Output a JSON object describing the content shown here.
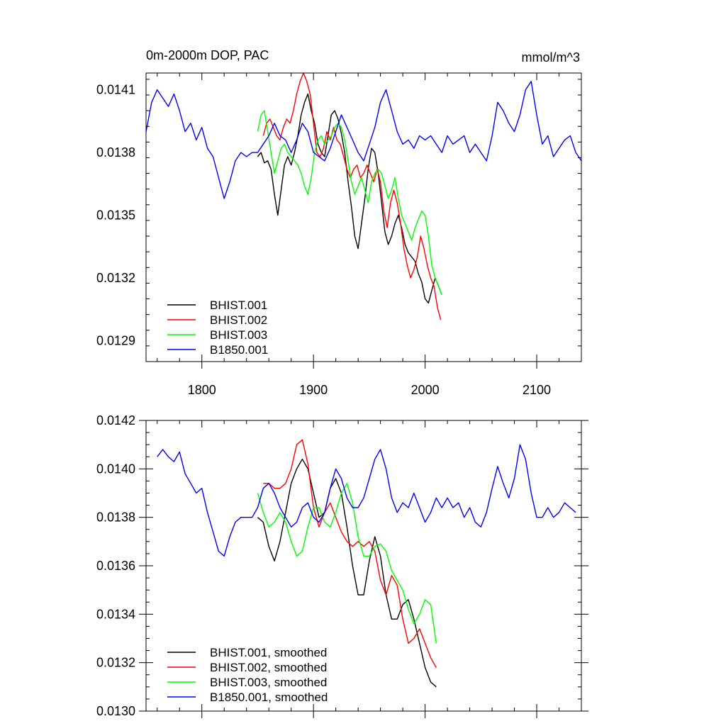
{
  "chart_data": [
    {
      "type": "line",
      "title": "0m-2000m DOP, PAC",
      "units_label": "mmol/m^3",
      "xlim": [
        1750,
        2140
      ],
      "ylim": [
        0.0128,
        0.01418
      ],
      "x_ticks": [
        1800,
        1900,
        2000,
        2100
      ],
      "x_tick_labels": [
        "1800",
        "1900",
        "2000",
        "2100"
      ],
      "y_ticks": [
        0.0129,
        0.0132,
        0.0135,
        0.0138,
        0.0141
      ],
      "y_tick_labels": [
        "0.0129",
        "0.0132",
        "0.0135",
        "0.0138",
        "0.0141"
      ],
      "legend_position": "bottom-left",
      "series": [
        {
          "name": "BHIST.001",
          "color": "#000000",
          "x": [
            1850,
            1853,
            1856,
            1859,
            1862,
            1865,
            1868,
            1871,
            1874,
            1877,
            1880,
            1883,
            1886,
            1889,
            1892,
            1895,
            1898,
            1901,
            1904,
            1907,
            1910,
            1913,
            1916,
            1919,
            1922,
            1925,
            1928,
            1931,
            1934,
            1937,
            1940,
            1943,
            1946,
            1949,
            1952,
            1955,
            1958,
            1961,
            1964,
            1967,
            1970,
            1973,
            1976,
            1979,
            1982,
            1985,
            1988,
            1991,
            1994,
            1997,
            2000,
            2003,
            2006,
            2009,
            2012,
            2015
          ],
          "values": [
            0.01378,
            0.0138,
            0.01375,
            0.01376,
            0.01372,
            0.0136,
            0.0135,
            0.01362,
            0.01374,
            0.01378,
            0.01374,
            0.0138,
            0.01388,
            0.01398,
            0.01404,
            0.01408,
            0.014,
            0.01394,
            0.01384,
            0.0138,
            0.01378,
            0.01388,
            0.01398,
            0.014,
            0.01396,
            0.01389,
            0.0138,
            0.01366,
            0.01354,
            0.0134,
            0.01334,
            0.01346,
            0.01358,
            0.01372,
            0.01382,
            0.0138,
            0.0137,
            0.01356,
            0.01342,
            0.01336,
            0.0134,
            0.01346,
            0.0135,
            0.01344,
            0.01336,
            0.01332,
            0.0133,
            0.01328,
            0.01322,
            0.01318,
            0.0131,
            0.01308,
            0.01314,
            0.0132,
            0.01316,
            0.01312
          ]
        },
        {
          "name": "BHIST.002",
          "color": "#ff0000",
          "x": [
            1855,
            1858,
            1861,
            1864,
            1867,
            1870,
            1873,
            1876,
            1879,
            1882,
            1885,
            1888,
            1891,
            1894,
            1897,
            1900,
            1903,
            1906,
            1909,
            1912,
            1915,
            1918,
            1921,
            1924,
            1927,
            1930,
            1933,
            1936,
            1939,
            1942,
            1945,
            1948,
            1951,
            1954,
            1957,
            1960,
            1963,
            1966,
            1969,
            1972,
            1975,
            1978,
            1981,
            1984,
            1987,
            1990,
            1993,
            1996,
            1999,
            2002,
            2005,
            2008,
            2011,
            2014
          ],
          "values": [
            0.01388,
            0.01394,
            0.01396,
            0.01392,
            0.01388,
            0.01386,
            0.01392,
            0.01396,
            0.01394,
            0.014,
            0.01408,
            0.01414,
            0.01418,
            0.01414,
            0.01408,
            0.01394,
            0.0138,
            0.01378,
            0.01382,
            0.0139,
            0.01386,
            0.01392,
            0.01386,
            0.01384,
            0.01378,
            0.01372,
            0.01368,
            0.01372,
            0.01374,
            0.01368,
            0.0137,
            0.01374,
            0.0137,
            0.01366,
            0.01372,
            0.01366,
            0.01352,
            0.01344,
            0.01356,
            0.01362,
            0.01356,
            0.01346,
            0.01334,
            0.01326,
            0.0132,
            0.01324,
            0.0133,
            0.0134,
            0.01334,
            0.01326,
            0.0132,
            0.01316,
            0.01306,
            0.013
          ]
        },
        {
          "name": "BHIST.003",
          "color": "#00ff00",
          "x": [
            1850,
            1853,
            1856,
            1859,
            1862,
            1865,
            1868,
            1871,
            1874,
            1877,
            1880,
            1883,
            1886,
            1889,
            1892,
            1895,
            1898,
            1901,
            1904,
            1907,
            1910,
            1913,
            1916,
            1919,
            1922,
            1925,
            1928,
            1931,
            1934,
            1937,
            1940,
            1943,
            1946,
            1949,
            1952,
            1955,
            1958,
            1961,
            1964,
            1967,
            1970,
            1973,
            1976,
            1979,
            1982,
            1985,
            1988,
            1991,
            1994,
            1997,
            2000,
            2003,
            2006,
            2009,
            2012,
            2015
          ],
          "values": [
            0.0139,
            0.01398,
            0.014,
            0.0139,
            0.0138,
            0.0137,
            0.01376,
            0.01382,
            0.01384,
            0.0138,
            0.01378,
            0.01376,
            0.01374,
            0.0137,
            0.01364,
            0.0136,
            0.01368,
            0.0138,
            0.01386,
            0.01388,
            0.01384,
            0.01386,
            0.01388,
            0.01392,
            0.01394,
            0.01392,
            0.01386,
            0.01376,
            0.01366,
            0.0136,
            0.01364,
            0.01368,
            0.01362,
            0.01356,
            0.01366,
            0.0137,
            0.01372,
            0.0137,
            0.01364,
            0.01358,
            0.01362,
            0.01368,
            0.01358,
            0.0135,
            0.01346,
            0.01342,
            0.01338,
            0.01344,
            0.01348,
            0.01352,
            0.0135,
            0.0134,
            0.01326,
            0.0132,
            0.01316,
            0.01312
          ]
        },
        {
          "name": "B1850.001",
          "color": "#0000ff",
          "x": [
            1750,
            1755,
            1760,
            1765,
            1770,
            1775,
            1780,
            1785,
            1790,
            1795,
            1800,
            1805,
            1810,
            1815,
            1820,
            1825,
            1830,
            1835,
            1840,
            1845,
            1850,
            1855,
            1860,
            1865,
            1870,
            1875,
            1880,
            1885,
            1890,
            1895,
            1900,
            1905,
            1910,
            1915,
            1920,
            1925,
            1930,
            1935,
            1940,
            1945,
            1950,
            1955,
            1960,
            1965,
            1970,
            1975,
            1980,
            1985,
            1990,
            1995,
            2000,
            2005,
            2010,
            2015,
            2020,
            2025,
            2030,
            2035,
            2040,
            2045,
            2050,
            2055,
            2060,
            2065,
            2070,
            2075,
            2080,
            2085,
            2090,
            2095,
            2100,
            2105,
            2110,
            2115,
            2120,
            2125,
            2130,
            2135,
            2140
          ],
          "values": [
            0.0139,
            0.01404,
            0.0141,
            0.01406,
            0.01402,
            0.01408,
            0.014,
            0.0139,
            0.01394,
            0.01386,
            0.01392,
            0.01382,
            0.01378,
            0.01368,
            0.01358,
            0.01366,
            0.01376,
            0.0138,
            0.01378,
            0.0138,
            0.0138,
            0.01384,
            0.01388,
            0.01394,
            0.01388,
            0.01386,
            0.0138,
            0.01386,
            0.01394,
            0.0139,
            0.0138,
            0.01378,
            0.01376,
            0.01382,
            0.0139,
            0.01398,
            0.01392,
            0.01386,
            0.0138,
            0.01376,
            0.01384,
            0.01392,
            0.01404,
            0.0141,
            0.014,
            0.0139,
            0.01384,
            0.01386,
            0.01382,
            0.01388,
            0.01386,
            0.01388,
            0.01384,
            0.0138,
            0.01388,
            0.01384,
            0.01386,
            0.01388,
            0.0138,
            0.01384,
            0.0138,
            0.01376,
            0.01388,
            0.01404,
            0.014,
            0.01394,
            0.0139,
            0.01398,
            0.0141,
            0.01414,
            0.01398,
            0.01384,
            0.01388,
            0.01378,
            0.01382,
            0.01386,
            0.01388,
            0.0138,
            0.01376
          ]
        }
      ]
    },
    {
      "type": "line",
      "xlim": [
        1750,
        2140
      ],
      "ylim": [
        0.013,
        0.0142
      ],
      "x_ticks": [
        1800,
        1900,
        2000,
        2100
      ],
      "y_ticks": [
        0.013,
        0.0132,
        0.0134,
        0.0136,
        0.0138,
        0.014,
        0.0142
      ],
      "y_tick_labels": [
        "0.0130",
        "0.0132",
        "0.0134",
        "0.0136",
        "0.0138",
        "0.0140",
        "0.0142"
      ],
      "legend_position": "bottom-left",
      "series": [
        {
          "name": "BHIST.001, smoothed",
          "color": "#000000",
          "x": [
            1850,
            1855,
            1860,
            1865,
            1870,
            1875,
            1880,
            1885,
            1890,
            1895,
            1900,
            1905,
            1910,
            1915,
            1920,
            1925,
            1930,
            1935,
            1940,
            1945,
            1950,
            1955,
            1960,
            1965,
            1970,
            1975,
            1980,
            1985,
            1990,
            1995,
            2000,
            2005,
            2010
          ],
          "values": [
            0.0138,
            0.01378,
            0.01368,
            0.01362,
            0.0137,
            0.01382,
            0.01394,
            0.014,
            0.01404,
            0.014,
            0.0139,
            0.0138,
            0.01382,
            0.01392,
            0.01396,
            0.0139,
            0.01376,
            0.0136,
            0.01348,
            0.01348,
            0.01362,
            0.01372,
            0.01364,
            0.01348,
            0.01338,
            0.01338,
            0.01344,
            0.01346,
            0.01338,
            0.01328,
            0.01318,
            0.01312,
            0.0131
          ]
        },
        {
          "name": "BHIST.002, smoothed",
          "color": "#ff0000",
          "x": [
            1855,
            1860,
            1865,
            1870,
            1875,
            1880,
            1885,
            1890,
            1895,
            1900,
            1905,
            1910,
            1915,
            1920,
            1925,
            1930,
            1935,
            1940,
            1945,
            1950,
            1955,
            1960,
            1965,
            1970,
            1975,
            1980,
            1985,
            1990,
            1995,
            2000,
            2005,
            2010
          ],
          "values": [
            0.01394,
            0.01394,
            0.01392,
            0.01392,
            0.01394,
            0.014,
            0.0141,
            0.01412,
            0.01402,
            0.01384,
            0.01376,
            0.01382,
            0.01386,
            0.0138,
            0.01374,
            0.0137,
            0.01368,
            0.0137,
            0.01368,
            0.0137,
            0.01366,
            0.01354,
            0.01348,
            0.01356,
            0.01352,
            0.01338,
            0.01328,
            0.0133,
            0.01334,
            0.01328,
            0.01322,
            0.01318
          ]
        },
        {
          "name": "BHIST.003, smoothed",
          "color": "#00ff00",
          "x": [
            1850,
            1855,
            1860,
            1865,
            1870,
            1875,
            1880,
            1885,
            1890,
            1895,
            1900,
            1905,
            1910,
            1915,
            1920,
            1925,
            1930,
            1935,
            1940,
            1945,
            1950,
            1955,
            1960,
            1965,
            1970,
            1975,
            1980,
            1985,
            1990,
            1995,
            2000,
            2005,
            2010
          ],
          "values": [
            0.0139,
            0.01382,
            0.01376,
            0.01378,
            0.01382,
            0.01378,
            0.0137,
            0.01364,
            0.01366,
            0.01376,
            0.01384,
            0.01384,
            0.01378,
            0.01376,
            0.01382,
            0.0139,
            0.01394,
            0.01386,
            0.01372,
            0.01364,
            0.01364,
            0.01368,
            0.01369,
            0.01366,
            0.01358,
            0.01354,
            0.0135,
            0.01342,
            0.01336,
            0.0134,
            0.01346,
            0.01344,
            0.01328
          ]
        },
        {
          "name": "B1850.001, smoothed",
          "color": "#0000ff",
          "x": [
            1760,
            1765,
            1770,
            1775,
            1780,
            1785,
            1790,
            1795,
            1800,
            1805,
            1810,
            1815,
            1820,
            1825,
            1830,
            1835,
            1840,
            1845,
            1850,
            1855,
            1860,
            1865,
            1870,
            1875,
            1880,
            1885,
            1890,
            1895,
            1900,
            1905,
            1910,
            1915,
            1920,
            1925,
            1930,
            1935,
            1940,
            1945,
            1950,
            1955,
            1960,
            1965,
            1970,
            1975,
            1980,
            1985,
            1990,
            1995,
            2000,
            2005,
            2010,
            2015,
            2020,
            2025,
            2030,
            2035,
            2040,
            2045,
            2050,
            2055,
            2060,
            2065,
            2070,
            2075,
            2080,
            2085,
            2090,
            2095,
            2100,
            2105,
            2110,
            2115,
            2120,
            2125,
            2130,
            2135
          ],
          "values": [
            0.01405,
            0.01408,
            0.01405,
            0.01403,
            0.01407,
            0.01398,
            0.01394,
            0.0139,
            0.01392,
            0.01382,
            0.01374,
            0.01366,
            0.01364,
            0.01372,
            0.01378,
            0.0138,
            0.0138,
            0.0138,
            0.01384,
            0.01392,
            0.01394,
            0.0139,
            0.01384,
            0.0138,
            0.01376,
            0.01378,
            0.01384,
            0.01386,
            0.0138,
            0.01378,
            0.01382,
            0.01392,
            0.014,
            0.01396,
            0.01388,
            0.01384,
            0.01384,
            0.01388,
            0.01396,
            0.01404,
            0.01408,
            0.014,
            0.01388,
            0.01382,
            0.01386,
            0.01384,
            0.0139,
            0.01384,
            0.01378,
            0.01382,
            0.01388,
            0.01384,
            0.01388,
            0.01384,
            0.01386,
            0.0138,
            0.01384,
            0.01378,
            0.01376,
            0.01382,
            0.01392,
            0.01401,
            0.01394,
            0.01388,
            0.01396,
            0.0141,
            0.01404,
            0.0139,
            0.0138,
            0.0138,
            0.01384,
            0.0138,
            0.01382,
            0.01386,
            0.01384,
            0.01382
          ]
        }
      ]
    }
  ]
}
